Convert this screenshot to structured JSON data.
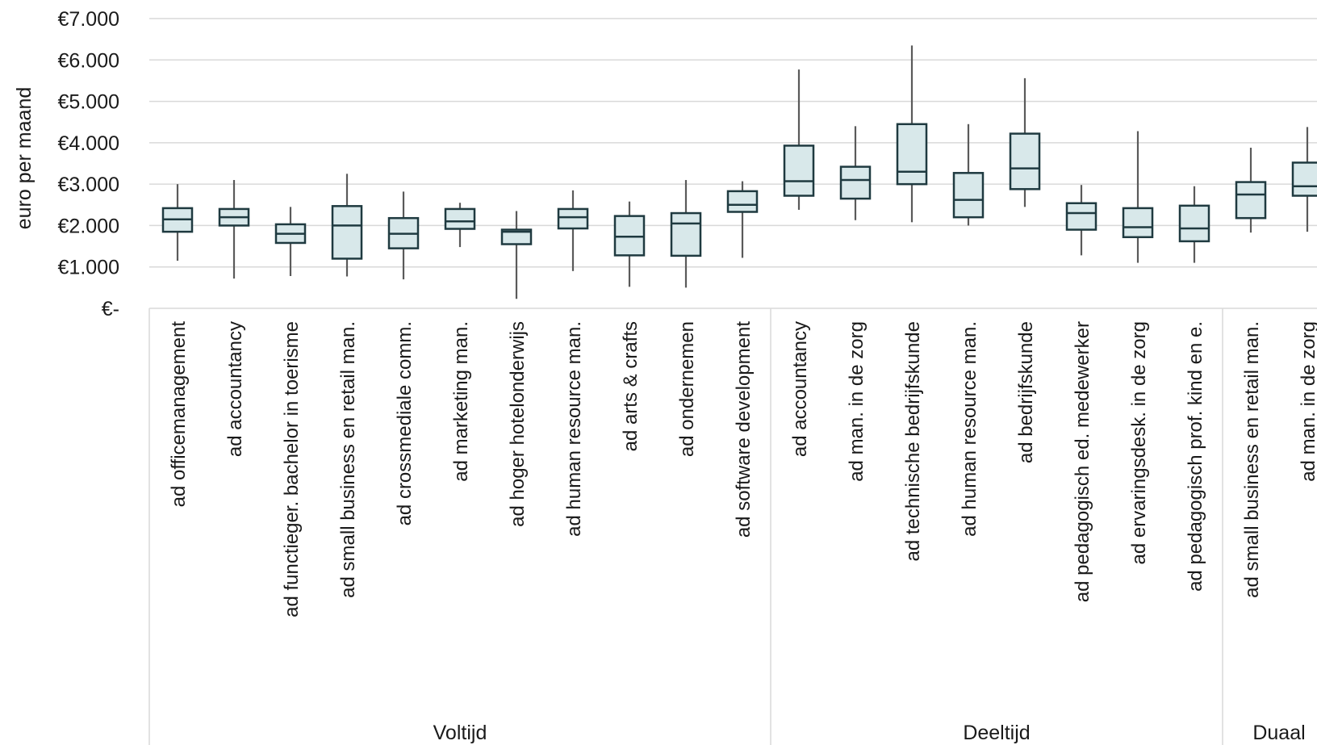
{
  "chart_data": {
    "type": "boxplot",
    "ylabel": "euro per maand",
    "ylim": [
      0,
      7000
    ],
    "yticks": [
      0,
      1000,
      2000,
      3000,
      4000,
      5000,
      6000,
      7000
    ],
    "ytick_labels": [
      "€-",
      "€1.000",
      "€2.000",
      "€3.000",
      "€4.000",
      "€5.000",
      "€6.000",
      "€7.000"
    ],
    "grid": true,
    "colors": {
      "box_fill": "#d8e8ea",
      "box_stroke": "#1f3a40",
      "whisker": "#5a5a5a",
      "grid": "#d9d9d9"
    },
    "groups": [
      {
        "label": "Voltijd",
        "items": [
          {
            "label": "ad officemanagement",
            "min": 1150,
            "q1": 1850,
            "median": 2150,
            "q3": 2420,
            "max": 3000
          },
          {
            "label": "ad accountancy",
            "min": 720,
            "q1": 2000,
            "median": 2200,
            "q3": 2400,
            "max": 3100
          },
          {
            "label": "ad functieger. bachelor in toerisme",
            "min": 780,
            "q1": 1580,
            "median": 1800,
            "q3": 2030,
            "max": 2450
          },
          {
            "label": "ad small business en retail man.",
            "min": 770,
            "q1": 1200,
            "median": 2000,
            "q3": 2470,
            "max": 3250
          },
          {
            "label": "ad crossmediale comm.",
            "min": 700,
            "q1": 1450,
            "median": 1800,
            "q3": 2180,
            "max": 2820
          },
          {
            "label": "ad marketing man.",
            "min": 1480,
            "q1": 1920,
            "median": 2100,
            "q3": 2400,
            "max": 2550
          },
          {
            "label": "ad hoger hotelonderwijs",
            "min": 230,
            "q1": 1550,
            "median": 1850,
            "q3": 1900,
            "max": 2350
          },
          {
            "label": "ad human resource man.",
            "min": 900,
            "q1": 1930,
            "median": 2200,
            "q3": 2400,
            "max": 2850
          },
          {
            "label": "ad arts & crafts",
            "min": 520,
            "q1": 1280,
            "median": 1730,
            "q3": 2230,
            "max": 2580
          },
          {
            "label": "ad ondernemen",
            "min": 500,
            "q1": 1270,
            "median": 2050,
            "q3": 2300,
            "max": 3100
          },
          {
            "label": "ad software development",
            "min": 1220,
            "q1": 2330,
            "median": 2500,
            "q3": 2830,
            "max": 3070
          }
        ]
      },
      {
        "label": "Deeltijd",
        "items": [
          {
            "label": "ad accountancy",
            "min": 2380,
            "q1": 2720,
            "median": 3070,
            "q3": 3930,
            "max": 5770
          },
          {
            "label": "ad man. in de zorg",
            "min": 2130,
            "q1": 2650,
            "median": 3100,
            "q3": 3420,
            "max": 4400
          },
          {
            "label": "ad technische bedrijfskunde",
            "min": 2080,
            "q1": 3000,
            "median": 3300,
            "q3": 4450,
            "max": 6350
          },
          {
            "label": "ad human resource man.",
            "min": 2000,
            "q1": 2200,
            "median": 2620,
            "q3": 3270,
            "max": 4450
          },
          {
            "label": "ad bedrijfskunde",
            "min": 2450,
            "q1": 2880,
            "median": 3380,
            "q3": 4220,
            "max": 5560
          },
          {
            "label": "ad pedagogisch ed. medewerker",
            "min": 1280,
            "q1": 1900,
            "median": 2300,
            "q3": 2540,
            "max": 2980
          },
          {
            "label": "ad ervaringsdesk. in de zorg",
            "min": 1100,
            "q1": 1720,
            "median": 1960,
            "q3": 2420,
            "max": 4280
          },
          {
            "label": "ad pedagogisch prof. kind en e.",
            "min": 1100,
            "q1": 1620,
            "median": 1930,
            "q3": 2480,
            "max": 2950
          }
        ]
      },
      {
        "label": "Duaal",
        "items": [
          {
            "label": "ad small business en retail man.",
            "min": 1830,
            "q1": 2180,
            "median": 2750,
            "q3": 3050,
            "max": 3880
          },
          {
            "label": "ad man. in de zorg",
            "min": 1850,
            "q1": 2720,
            "median": 2950,
            "q3": 3520,
            "max": 4380
          }
        ]
      }
    ]
  }
}
